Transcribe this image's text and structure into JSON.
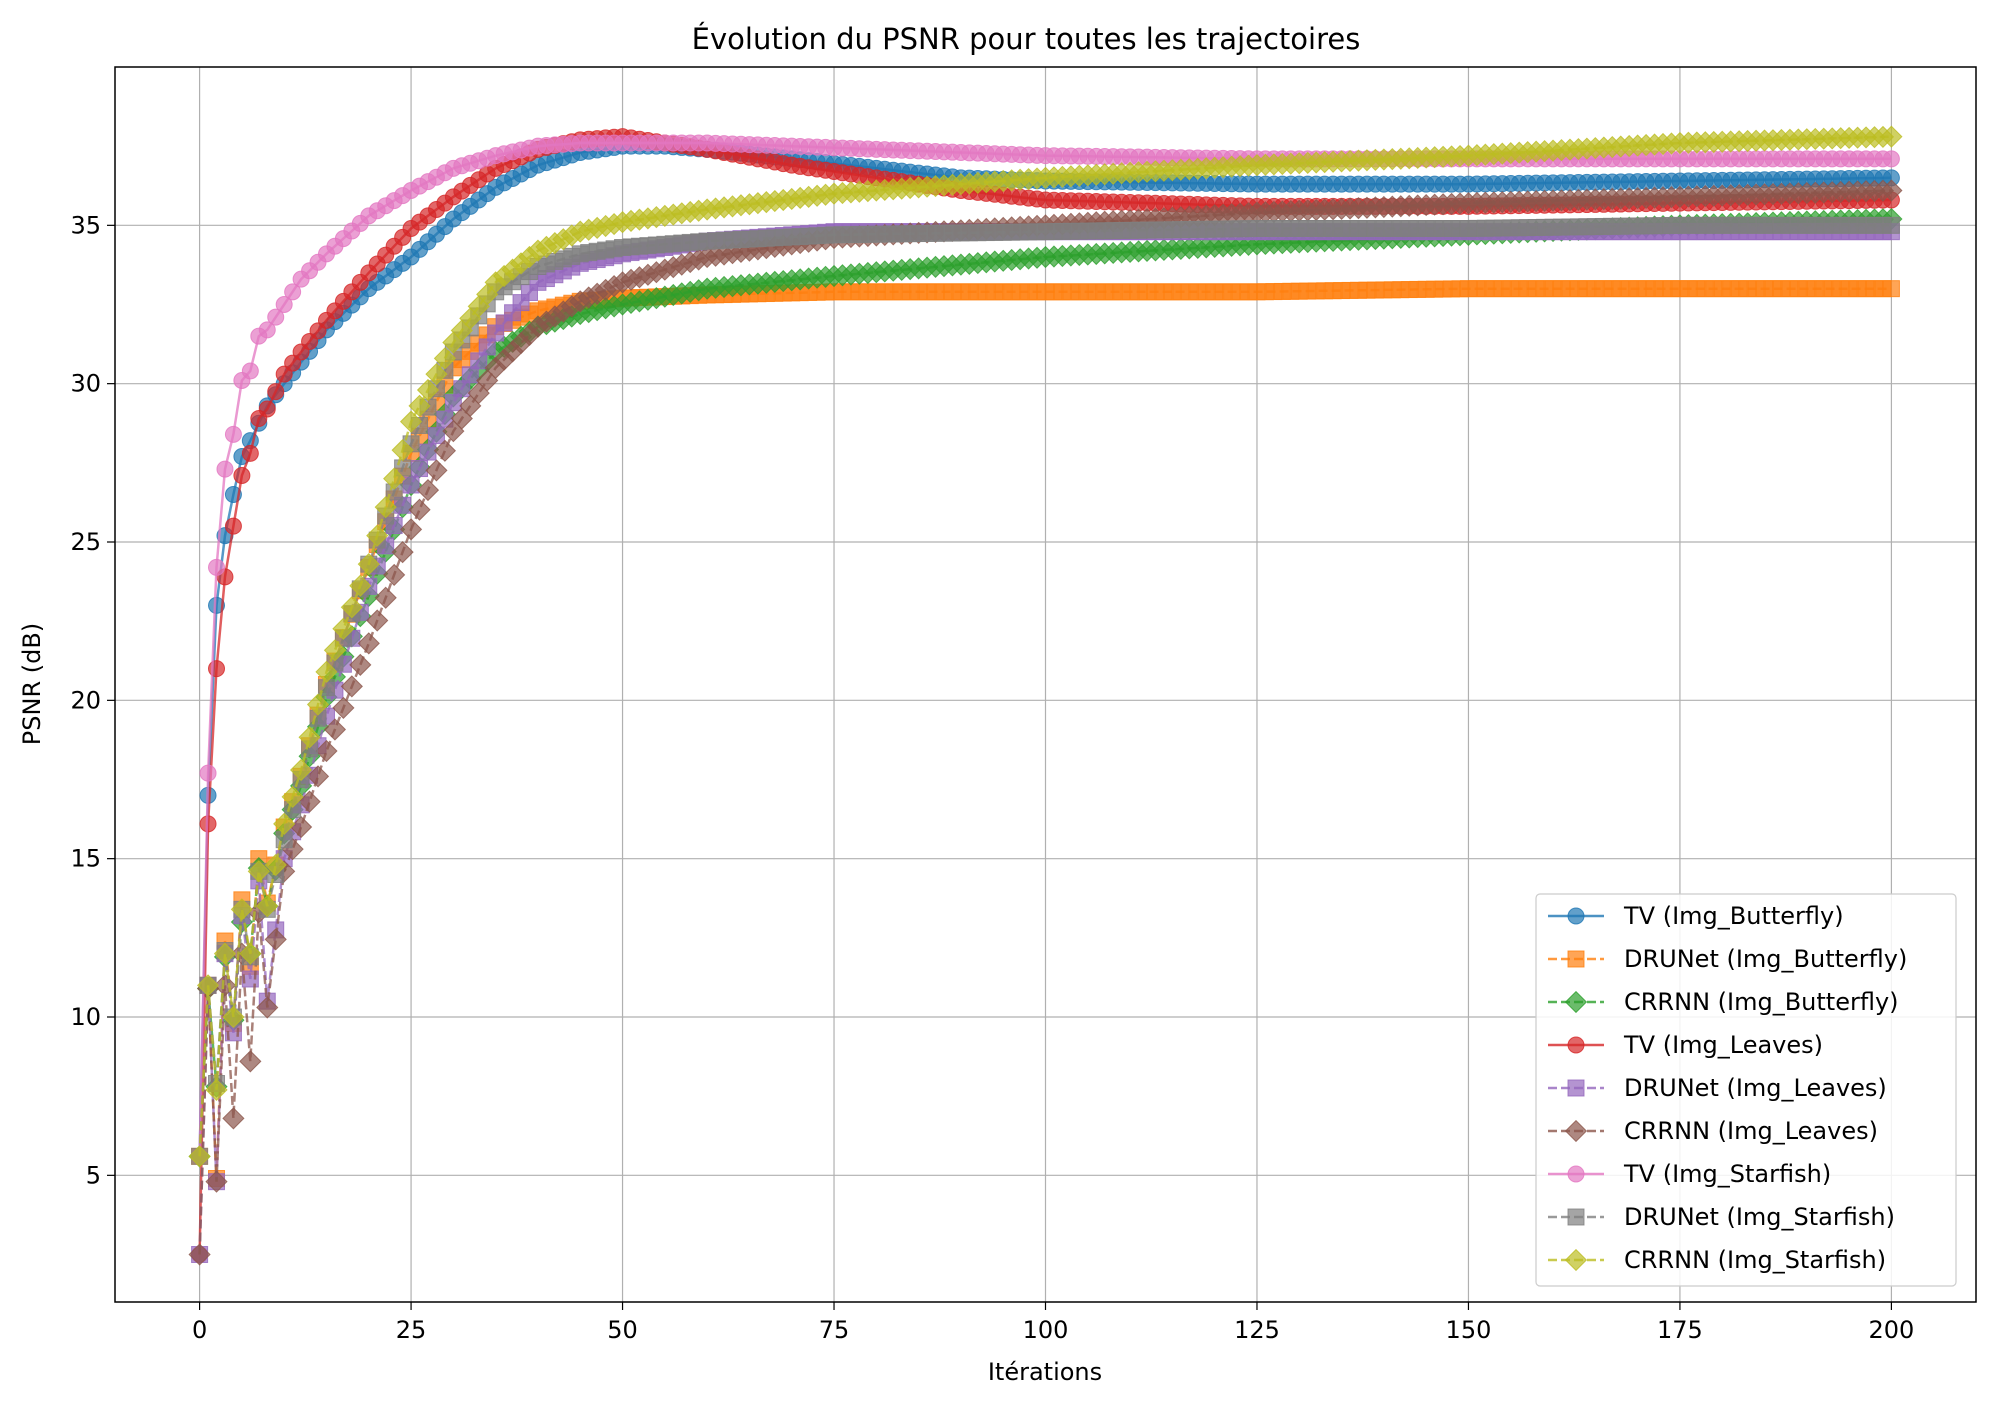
{
  "chart_data": {
    "type": "line",
    "title": "Évolution du PSNR pour toutes les trajectoires",
    "xlabel": "Itérations",
    "ylabel": "PSNR (dB)",
    "xlim": [
      -10,
      210
    ],
    "ylim": [
      1,
      40
    ],
    "xticks": [
      0,
      25,
      50,
      75,
      100,
      125,
      150,
      175,
      200
    ],
    "yticks": [
      5,
      10,
      15,
      20,
      25,
      30,
      35
    ],
    "grid": true,
    "legend_position": "lower-right",
    "series": [
      {
        "name": "TV (Img_Butterfly)",
        "color": "#1f77b4",
        "linestyle": "solid",
        "marker": "circle",
        "points": [
          [
            0,
            5.6
          ],
          [
            1,
            17.0
          ],
          [
            2,
            23.0
          ],
          [
            3,
            25.2
          ],
          [
            4,
            26.5
          ],
          [
            5,
            27.7
          ],
          [
            6,
            28.2
          ],
          [
            8,
            29.3
          ],
          [
            10,
            30.0
          ],
          [
            15,
            31.7
          ],
          [
            20,
            33.0
          ],
          [
            25,
            34.0
          ],
          [
            30,
            35.2
          ],
          [
            35,
            36.2
          ],
          [
            40,
            36.9
          ],
          [
            45,
            37.3
          ],
          [
            50,
            37.5
          ],
          [
            55,
            37.5
          ],
          [
            60,
            37.4
          ],
          [
            70,
            37.1
          ],
          [
            80,
            36.8
          ],
          [
            90,
            36.5
          ],
          [
            100,
            36.4
          ],
          [
            125,
            36.3
          ],
          [
            150,
            36.3
          ],
          [
            175,
            36.4
          ],
          [
            200,
            36.5
          ]
        ]
      },
      {
        "name": "DRUNet (Img_Butterfly)",
        "color": "#ff7f0e",
        "linestyle": "dashed",
        "marker": "square",
        "points": [
          [
            0,
            5.6
          ],
          [
            1,
            11.0
          ],
          [
            2,
            4.9
          ],
          [
            3,
            12.4
          ],
          [
            4,
            9.8
          ],
          [
            5,
            13.7
          ],
          [
            6,
            11.6
          ],
          [
            7,
            15.0
          ],
          [
            8,
            13.6
          ],
          [
            10,
            16.0
          ],
          [
            12,
            17.6
          ],
          [
            15,
            20.5
          ],
          [
            20,
            24.2
          ],
          [
            25,
            27.8
          ],
          [
            30,
            30.5
          ],
          [
            35,
            31.8
          ],
          [
            40,
            32.3
          ],
          [
            45,
            32.6
          ],
          [
            50,
            32.7
          ],
          [
            60,
            32.8
          ],
          [
            75,
            32.9
          ],
          [
            100,
            32.9
          ],
          [
            125,
            32.9
          ],
          [
            150,
            33.0
          ],
          [
            175,
            33.0
          ],
          [
            200,
            33.0
          ]
        ]
      },
      {
        "name": "CRRNN (Img_Butterfly)",
        "color": "#2ca02c",
        "linestyle": "dashed",
        "marker": "diamond",
        "points": [
          [
            0,
            5.6
          ],
          [
            1,
            10.9
          ],
          [
            2,
            7.8
          ],
          [
            3,
            11.9
          ],
          [
            4,
            9.9
          ],
          [
            5,
            13.0
          ],
          [
            6,
            12.0
          ],
          [
            7,
            14.7
          ],
          [
            8,
            13.5
          ],
          [
            10,
            15.8
          ],
          [
            12,
            17.3
          ],
          [
            15,
            20.1
          ],
          [
            20,
            23.3
          ],
          [
            25,
            26.8
          ],
          [
            30,
            29.6
          ],
          [
            35,
            31.0
          ],
          [
            40,
            31.8
          ],
          [
            45,
            32.2
          ],
          [
            50,
            32.5
          ],
          [
            60,
            33.0
          ],
          [
            75,
            33.4
          ],
          [
            100,
            34.0
          ],
          [
            125,
            34.4
          ],
          [
            150,
            34.7
          ],
          [
            175,
            35.0
          ],
          [
            200,
            35.2
          ]
        ]
      },
      {
        "name": "TV (Img_Leaves)",
        "color": "#d62728",
        "linestyle": "solid",
        "marker": "circle",
        "points": [
          [
            0,
            2.5
          ],
          [
            1,
            16.1
          ],
          [
            2,
            21.0
          ],
          [
            3,
            23.9
          ],
          [
            4,
            25.5
          ],
          [
            5,
            27.1
          ],
          [
            6,
            27.8
          ],
          [
            7,
            28.9
          ],
          [
            8,
            29.2
          ],
          [
            10,
            30.3
          ],
          [
            12,
            31.0
          ],
          [
            15,
            32.0
          ],
          [
            20,
            33.5
          ],
          [
            25,
            34.9
          ],
          [
            30,
            35.9
          ],
          [
            35,
            36.8
          ],
          [
            40,
            37.4
          ],
          [
            45,
            37.7
          ],
          [
            50,
            37.8
          ],
          [
            55,
            37.6
          ],
          [
            60,
            37.4
          ],
          [
            70,
            36.9
          ],
          [
            80,
            36.5
          ],
          [
            90,
            36.1
          ],
          [
            100,
            35.8
          ],
          [
            125,
            35.6
          ],
          [
            150,
            35.6
          ],
          [
            175,
            35.7
          ],
          [
            200,
            35.8
          ]
        ]
      },
      {
        "name": "DRUNet (Img_Leaves)",
        "color": "#9467bd",
        "linestyle": "dashed",
        "marker": "square",
        "points": [
          [
            0,
            2.5
          ],
          [
            1,
            11.0
          ],
          [
            2,
            4.8
          ],
          [
            3,
            12.0
          ],
          [
            4,
            9.5
          ],
          [
            5,
            13.2
          ],
          [
            6,
            11.2
          ],
          [
            7,
            14.3
          ],
          [
            8,
            10.5
          ],
          [
            10,
            15.0
          ],
          [
            12,
            16.7
          ],
          [
            15,
            19.5
          ],
          [
            20,
            23.6
          ],
          [
            25,
            26.8
          ],
          [
            30,
            29.4
          ],
          [
            35,
            31.6
          ],
          [
            40,
            33.2
          ],
          [
            45,
            33.8
          ],
          [
            50,
            34.1
          ],
          [
            60,
            34.5
          ],
          [
            75,
            34.8
          ],
          [
            100,
            34.8
          ],
          [
            125,
            34.8
          ],
          [
            150,
            34.8
          ],
          [
            175,
            34.8
          ],
          [
            200,
            34.8
          ]
        ]
      },
      {
        "name": "CRRNN (Img_Leaves)",
        "color": "#8c564b",
        "linestyle": "dashed",
        "marker": "diamond",
        "points": [
          [
            0,
            2.5
          ],
          [
            1,
            10.9
          ],
          [
            2,
            4.8
          ],
          [
            3,
            11.0
          ],
          [
            4,
            6.8
          ],
          [
            5,
            12.0
          ],
          [
            6,
            8.6
          ],
          [
            7,
            13.3
          ],
          [
            8,
            10.3
          ],
          [
            10,
            14.6
          ],
          [
            12,
            16.0
          ],
          [
            15,
            18.4
          ],
          [
            20,
            21.8
          ],
          [
            25,
            25.4
          ],
          [
            30,
            28.5
          ],
          [
            35,
            30.5
          ],
          [
            40,
            31.8
          ],
          [
            45,
            32.6
          ],
          [
            50,
            33.2
          ],
          [
            60,
            34.0
          ],
          [
            75,
            34.6
          ],
          [
            100,
            35.0
          ],
          [
            125,
            35.4
          ],
          [
            150,
            35.7
          ],
          [
            175,
            35.9
          ],
          [
            200,
            36.1
          ]
        ]
      },
      {
        "name": "TV (Img_Starfish)",
        "color": "#e377c2",
        "linestyle": "solid",
        "marker": "circle",
        "points": [
          [
            0,
            5.6
          ],
          [
            1,
            17.7
          ],
          [
            2,
            24.2
          ],
          [
            3,
            27.3
          ],
          [
            4,
            28.4
          ],
          [
            5,
            30.1
          ],
          [
            6,
            30.4
          ],
          [
            7,
            31.5
          ],
          [
            8,
            31.7
          ],
          [
            10,
            32.5
          ],
          [
            12,
            33.3
          ],
          [
            15,
            34.1
          ],
          [
            20,
            35.3
          ],
          [
            25,
            36.1
          ],
          [
            30,
            36.8
          ],
          [
            35,
            37.2
          ],
          [
            40,
            37.5
          ],
          [
            45,
            37.6
          ],
          [
            50,
            37.6
          ],
          [
            60,
            37.6
          ],
          [
            70,
            37.5
          ],
          [
            80,
            37.4
          ],
          [
            100,
            37.2
          ],
          [
            125,
            37.1
          ],
          [
            150,
            37.1
          ],
          [
            175,
            37.1
          ],
          [
            200,
            37.1
          ]
        ]
      },
      {
        "name": "DRUNet (Img_Starfish)",
        "color": "#7f7f7f",
        "linestyle": "dashed",
        "marker": "square",
        "points": [
          [
            0,
            5.6
          ],
          [
            1,
            11.0
          ],
          [
            2,
            7.9
          ],
          [
            3,
            12.1
          ],
          [
            4,
            10.0
          ],
          [
            5,
            13.4
          ],
          [
            6,
            11.9
          ],
          [
            7,
            14.6
          ],
          [
            8,
            13.4
          ],
          [
            10,
            15.6
          ],
          [
            12,
            17.5
          ],
          [
            15,
            20.4
          ],
          [
            20,
            24.3
          ],
          [
            25,
            28.1
          ],
          [
            30,
            31.0
          ],
          [
            35,
            32.9
          ],
          [
            40,
            33.7
          ],
          [
            45,
            34.1
          ],
          [
            50,
            34.3
          ],
          [
            60,
            34.5
          ],
          [
            75,
            34.7
          ],
          [
            100,
            34.8
          ],
          [
            125,
            34.9
          ],
          [
            150,
            34.9
          ],
          [
            175,
            35.0
          ],
          [
            200,
            35.0
          ]
        ]
      },
      {
        "name": "CRRNN (Img_Starfish)",
        "color": "#bcbd22",
        "linestyle": "dashed",
        "marker": "diamond",
        "points": [
          [
            0,
            5.6
          ],
          [
            1,
            11.0
          ],
          [
            2,
            7.7
          ],
          [
            3,
            12.0
          ],
          [
            4,
            10.0
          ],
          [
            5,
            13.4
          ],
          [
            6,
            12.0
          ],
          [
            7,
            14.6
          ],
          [
            8,
            13.5
          ],
          [
            10,
            16.1
          ],
          [
            12,
            17.8
          ],
          [
            15,
            20.9
          ],
          [
            20,
            24.3
          ],
          [
            25,
            28.8
          ],
          [
            30,
            31.3
          ],
          [
            35,
            33.2
          ],
          [
            40,
            34.2
          ],
          [
            45,
            34.8
          ],
          [
            50,
            35.1
          ],
          [
            60,
            35.5
          ],
          [
            75,
            36.0
          ],
          [
            100,
            36.5
          ],
          [
            125,
            36.9
          ],
          [
            150,
            37.2
          ],
          [
            175,
            37.6
          ],
          [
            200,
            37.8
          ]
        ]
      }
    ]
  }
}
